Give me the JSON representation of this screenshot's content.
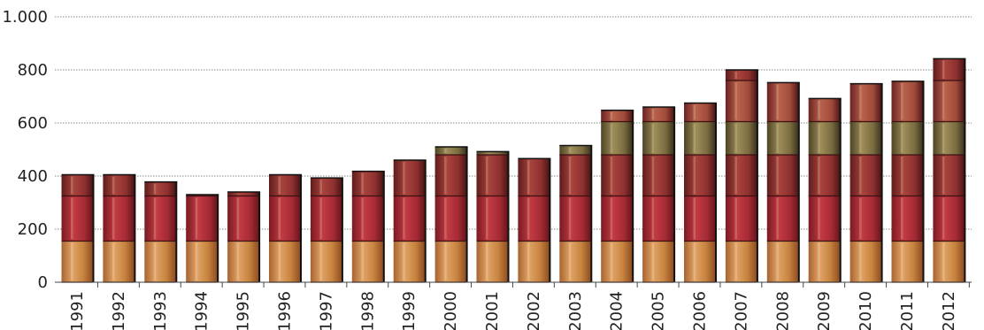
{
  "chart_data": {
    "type": "bar",
    "categories": [
      "1991",
      "1992",
      "1993",
      "1994",
      "1995",
      "1996",
      "1997",
      "1998",
      "1999",
      "2000",
      "2001",
      "2002",
      "2003",
      "2004",
      "2005",
      "2006",
      "2007",
      "2008",
      "2009",
      "2010",
      "2011",
      "2012"
    ],
    "values": [
      405,
      405,
      378,
      330,
      340,
      405,
      393,
      418,
      460,
      510,
      492,
      466,
      515,
      648,
      660,
      675,
      800,
      752,
      692,
      748,
      757,
      842
    ],
    "ylim": [
      0,
      1000
    ],
    "yticks": [
      0,
      200,
      400,
      600,
      800,
      1000
    ],
    "ytick_labels": [
      "0",
      "200",
      "400",
      "600",
      "800",
      "1.000"
    ],
    "grid": "horizontal-dotted",
    "legend": "none",
    "bar_style": "stacked photographic book spines"
  },
  "colors": {
    "spine_tan": "#c98a4b",
    "spine_red": "#b0323a",
    "spine_maroon": "#8e2a2a",
    "spine_olive": "#7a6a3a",
    "spine_dark": "#5a1a1a",
    "grid": "#888888",
    "axis": "#444444"
  }
}
